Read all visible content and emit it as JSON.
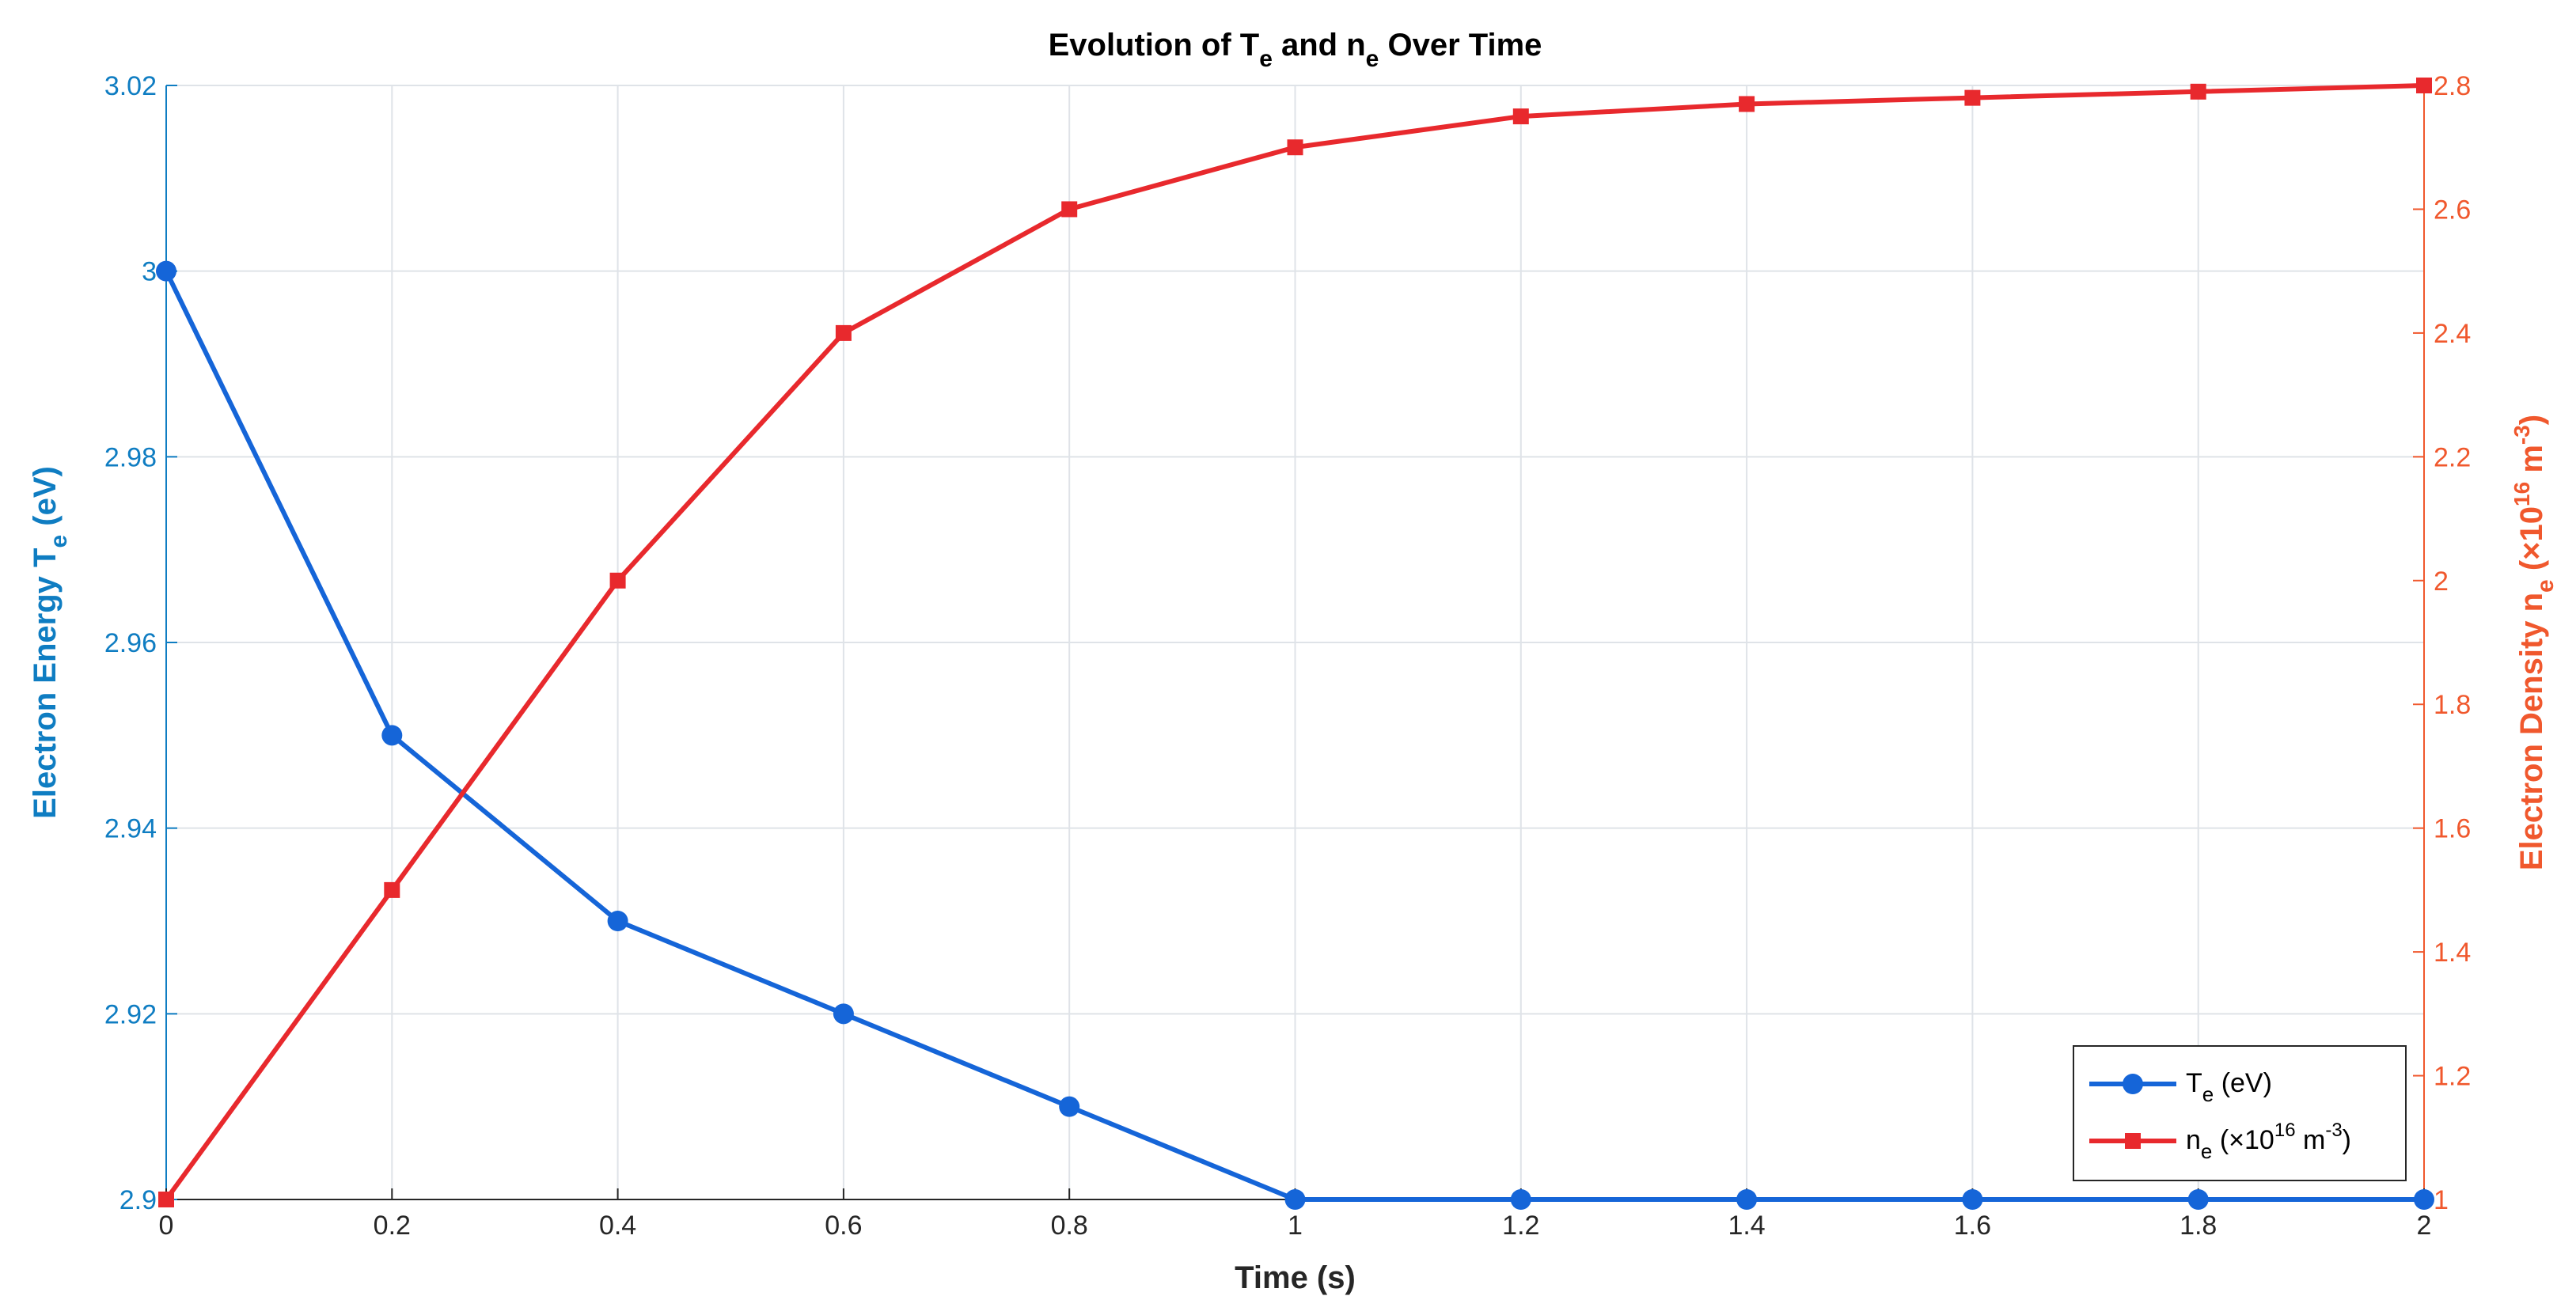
{
  "chart_data": {
    "type": "line",
    "title": {
      "prefix": "Evolution of T",
      "sub1": "e",
      "middle": " and n",
      "sub2": "e",
      "suffix": " Over Time"
    },
    "xlabel": "Time (s)",
    "ylabel_left": {
      "main": "Electron Energy T",
      "sub": "e",
      "suffix": " (eV)"
    },
    "ylabel_right": {
      "main": "Electron Density n",
      "sub": "e",
      "mid": " (×10",
      "sup1": "16",
      "mid2": " m",
      "sup2": "-3",
      "suffix": ")"
    },
    "xlim": [
      0,
      2
    ],
    "ylim_left": [
      2.9,
      3.02
    ],
    "ylim_right": [
      1,
      2.8
    ],
    "x_ticks": [
      "0",
      "0.2",
      "0.4",
      "0.6",
      "0.8",
      "1",
      "1.2",
      "1.4",
      "1.6",
      "1.8",
      "2"
    ],
    "y_left_ticks": [
      "2.9",
      "2.92",
      "2.94",
      "2.96",
      "2.98",
      "3",
      "3.02"
    ],
    "y_right_ticks": [
      "1",
      "1.2",
      "1.4",
      "1.6",
      "1.8",
      "2",
      "2.2",
      "2.4",
      "2.6",
      "2.8"
    ],
    "grid": true,
    "legend_position": "bottom-right",
    "x": [
      0,
      0.2,
      0.4,
      0.6,
      0.8,
      1.0,
      1.2,
      1.4,
      1.6,
      1.8,
      2.0
    ],
    "series": [
      {
        "name": "Te (eV)",
        "legend": {
          "main": "T",
          "sub": "e",
          "suffix": " (eV)"
        },
        "axis": "left",
        "marker": "circle",
        "color": "#1565d8",
        "values": [
          3.0,
          2.95,
          2.93,
          2.92,
          2.91,
          2.9,
          2.9,
          2.9,
          2.9,
          2.9,
          2.9
        ]
      },
      {
        "name": "ne (×1016 m-3)",
        "legend": {
          "main": "n",
          "sub": "e",
          "mid": " (×10",
          "sup1": "16",
          "mid2": " m",
          "sup2": "-3",
          "suffix": ")"
        },
        "axis": "right",
        "marker": "square",
        "color": "#e8292d",
        "values": [
          1.0,
          1.5,
          2.0,
          2.4,
          2.6,
          2.7,
          2.75,
          2.77,
          2.78,
          2.79,
          2.8
        ]
      }
    ],
    "colors": {
      "left_axis": "#0f7dc2",
      "right_axis": "#f0582d",
      "axis_line": "#262626"
    }
  }
}
